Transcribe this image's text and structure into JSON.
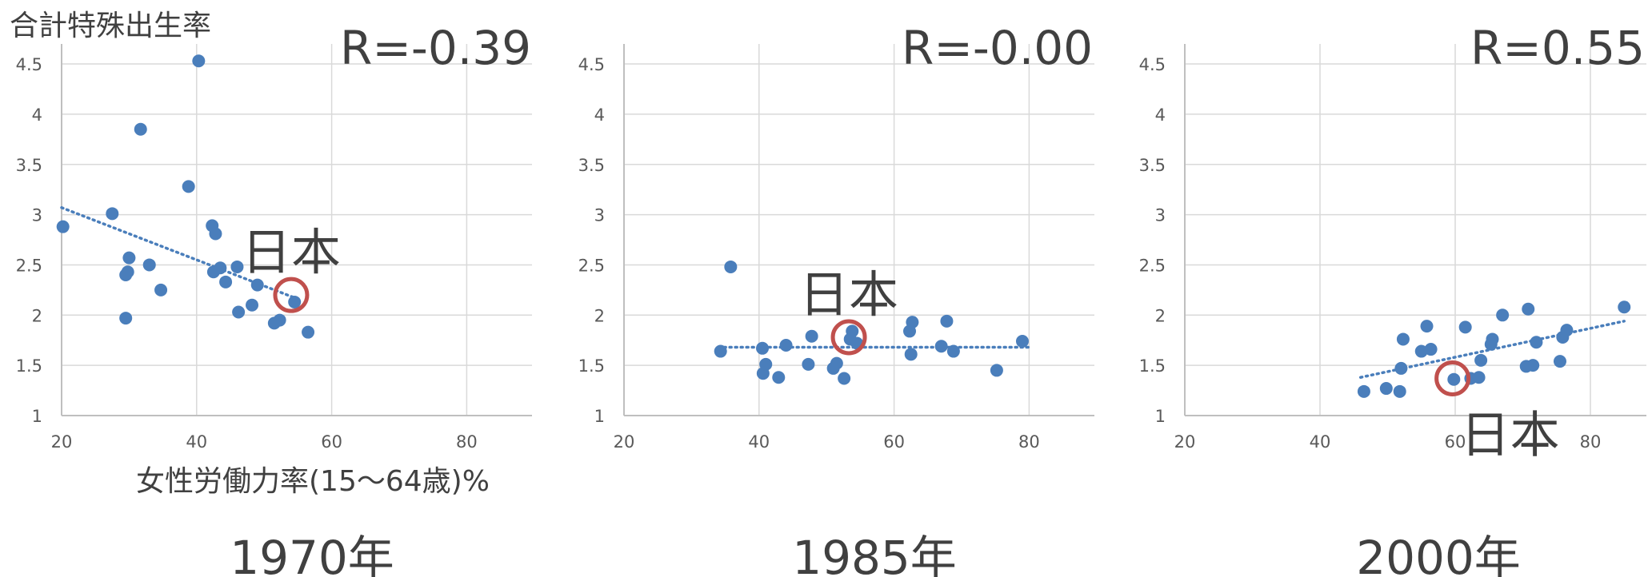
{
  "ylabel": "合計特殊出生率",
  "xlabel": "女性労働力率(15～64歳)%",
  "colors": {
    "points": "#4a7ebb",
    "trend": "#4a7ebb",
    "highlight": "#c0504d",
    "grid": "#d9d9d9",
    "axis": "#bfbfbf",
    "text": "#404040"
  },
  "chart_data": [
    {
      "type": "scatter",
      "year_label": "1970年",
      "r_label": "R=-0.39",
      "highlight_label": "日本",
      "highlight": {
        "x": 54,
        "y": 2.2
      },
      "xlim": [
        20,
        90
      ],
      "ylim": [
        1,
        4.8
      ],
      "xticks": [
        "20",
        "40",
        "60",
        "80"
      ],
      "yticks": [
        "1",
        "1.5",
        "2",
        "2.5",
        "3",
        "3.5",
        "4",
        "4.5"
      ],
      "trend": [
        [
          20,
          3.07
        ],
        [
          55,
          2.16
        ]
      ],
      "points": [
        [
          20.2,
          2.88
        ],
        [
          27.5,
          3.01
        ],
        [
          29.5,
          2.4
        ],
        [
          29.8,
          2.43
        ],
        [
          30,
          2.57
        ],
        [
          29.5,
          1.97
        ],
        [
          31.7,
          3.85
        ],
        [
          33,
          2.5
        ],
        [
          34.7,
          2.25
        ],
        [
          38.8,
          3.28
        ],
        [
          40.3,
          4.53
        ],
        [
          42.3,
          2.89
        ],
        [
          42.8,
          2.81
        ],
        [
          42.5,
          2.43
        ],
        [
          43.5,
          2.47
        ],
        [
          44.3,
          2.33
        ],
        [
          46,
          2.48
        ],
        [
          46.2,
          2.03
        ],
        [
          48.2,
          2.1
        ],
        [
          49,
          2.3
        ],
        [
          51.5,
          1.92
        ],
        [
          52.3,
          1.95
        ],
        [
          54.5,
          2.13
        ],
        [
          56.5,
          1.83
        ]
      ]
    },
    {
      "type": "scatter",
      "year_label": "1985年",
      "r_label": "R=-0.00",
      "highlight_label": "日本",
      "highlight": {
        "x": 53.3,
        "y": 1.78
      },
      "xlim": [
        20,
        90
      ],
      "ylim": [
        1,
        4.8
      ],
      "xticks": [
        "20",
        "40",
        "60",
        "80"
      ],
      "yticks": [
        "1",
        "1.5",
        "2",
        "2.5",
        "3",
        "3.5",
        "4",
        "4.5"
      ],
      "trend": [
        [
          34,
          1.68
        ],
        [
          80,
          1.68
        ]
      ],
      "points": [
        [
          34.3,
          1.64
        ],
        [
          35.8,
          2.48
        ],
        [
          40.5,
          1.67
        ],
        [
          40.6,
          1.42
        ],
        [
          41,
          1.51
        ],
        [
          42.9,
          1.38
        ],
        [
          44,
          1.7
        ],
        [
          47.3,
          1.51
        ],
        [
          47.8,
          1.79
        ],
        [
          51,
          1.47
        ],
        [
          51.5,
          1.52
        ],
        [
          52.6,
          1.37
        ],
        [
          53.5,
          1.76
        ],
        [
          53.8,
          1.84
        ],
        [
          54.5,
          1.72
        ],
        [
          62.3,
          1.84
        ],
        [
          62.5,
          1.61
        ],
        [
          62.7,
          1.93
        ],
        [
          67,
          1.69
        ],
        [
          67.8,
          1.94
        ],
        [
          68.8,
          1.64
        ],
        [
          75.2,
          1.45
        ],
        [
          79,
          1.74
        ]
      ]
    },
    {
      "type": "scatter",
      "year_label": "2000年",
      "r_label": "R=0.55",
      "highlight_label": "日本",
      "highlight": {
        "x": 59.6,
        "y": 1.37
      },
      "xlim": [
        20,
        90
      ],
      "ylim": [
        1,
        4.8
      ],
      "xticks": [
        "20",
        "40",
        "60",
        "80"
      ],
      "yticks": [
        "1",
        "1.5",
        "2",
        "2.5",
        "3",
        "3.5",
        "4",
        "4.5"
      ],
      "trend": [
        [
          46,
          1.38
        ],
        [
          85,
          1.94
        ]
      ],
      "points": [
        [
          46.5,
          1.24
        ],
        [
          49.8,
          1.27
        ],
        [
          51.8,
          1.24
        ],
        [
          52,
          1.47
        ],
        [
          52.3,
          1.76
        ],
        [
          55,
          1.64
        ],
        [
          55.8,
          1.89
        ],
        [
          56.4,
          1.66
        ],
        [
          59.8,
          1.36
        ],
        [
          61.5,
          1.88
        ],
        [
          62.3,
          1.37
        ],
        [
          63.5,
          1.38
        ],
        [
          63.8,
          1.55
        ],
        [
          65.3,
          1.71
        ],
        [
          65.5,
          1.76
        ],
        [
          67,
          2.0
        ],
        [
          70.5,
          1.49
        ],
        [
          70.8,
          2.06
        ],
        [
          71.5,
          1.5
        ],
        [
          72,
          1.73
        ],
        [
          75.5,
          1.54
        ],
        [
          75.9,
          1.78
        ],
        [
          76.5,
          1.85
        ],
        [
          85,
          2.08
        ]
      ]
    }
  ]
}
